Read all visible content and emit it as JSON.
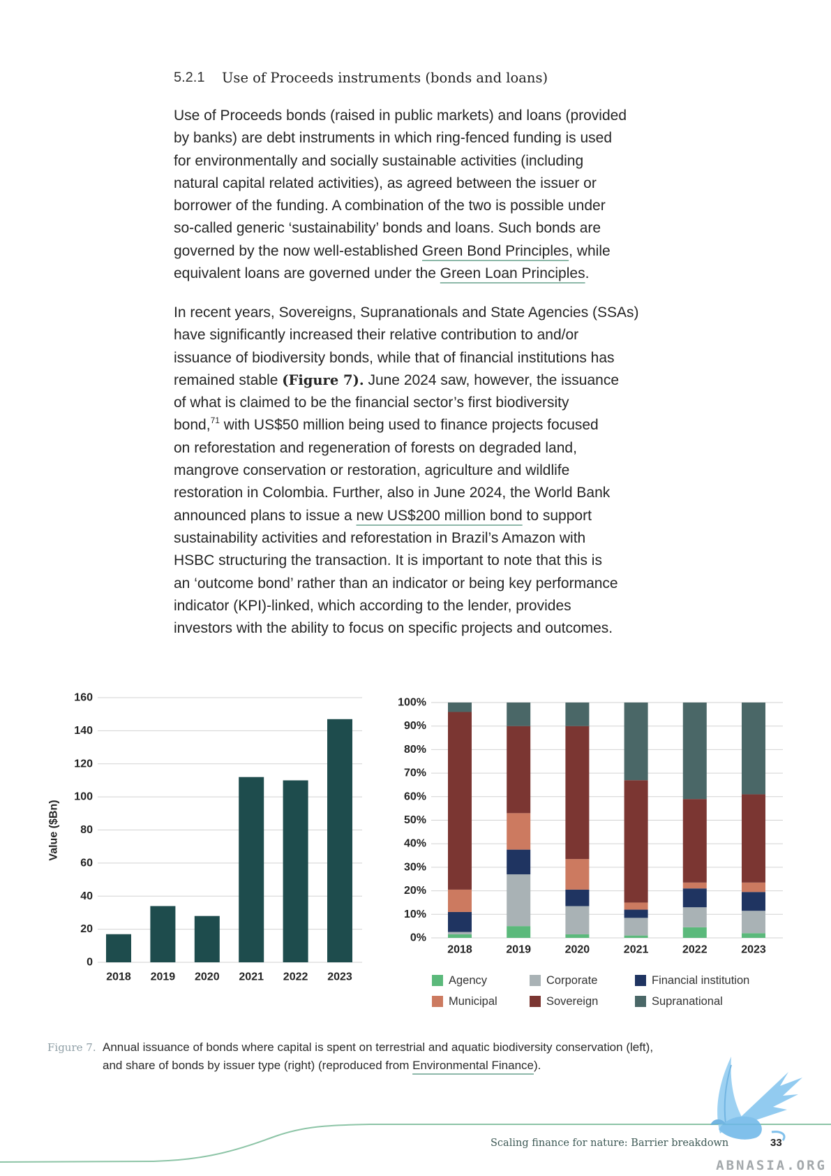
{
  "section": {
    "number": "5.2.1",
    "title": "Use of Proceeds instruments (bonds and loans)"
  },
  "paragraph_1": {
    "lines": [
      "Use of Proceeds bonds (raised in public markets) and loans (provided",
      "by banks) are debt instruments in which ring-fenced funding is used",
      "for environmentally and socially sustainable activities (including",
      "natural capital related activities), as agreed between the issuer or",
      "borrower of the funding. A combination of the two is possible under",
      "so-called generic ‘sustainability’ bonds and loans. Such bonds are",
      {
        "before": "governed by the now well-established ",
        "link": "Green Bond Principles",
        "after": ", while"
      },
      {
        "before": "equivalent loans are governed under the ",
        "link": "Green Loan Principles",
        "after": "."
      }
    ]
  },
  "paragraph_2": {
    "lines": [
      "In recent years, Sovereigns, Supranationals and State Agencies (SSAs)",
      "have significantly increased their relative contribution to and/or",
      "issuance of biodiversity bonds, while that of financial institutions has",
      {
        "before": "remained stable ",
        "bold": "(Figure 7).",
        "after": " June 2024 saw, however, the issuance"
      },
      "of what is claimed to be the financial sector’s first biodiversity",
      {
        "before": "bond,",
        "sup": "71",
        "after": " with US$50 million being used to finance projects focused"
      },
      "on reforestation and regeneration of forests on degraded land,",
      "mangrove conservation or restoration, agriculture and wildlife",
      "restoration in Colombia. Further, also in June 2024, the World Bank",
      {
        "before": "announced plans to issue a ",
        "link": "new US$200 million bond",
        "after": " to support"
      },
      "sustainability activities and reforestation in Brazil’s Amazon with",
      "HSBC structuring the transaction. It is important to note that this is",
      "an ‘outcome bond’ rather than an indicator or being key performance",
      "indicator (KPI)-linked, which according to the lender, provides",
      "investors with the ability to focus on specific projects and outcomes."
    ]
  },
  "chart_data": [
    {
      "type": "bar",
      "categories": [
        "2018",
        "2019",
        "2020",
        "2021",
        "2022",
        "2023"
      ],
      "values": [
        17,
        34,
        28,
        112,
        110,
        147
      ],
      "ylabel": "Value ($Bn)",
      "ylim": [
        0,
        160
      ],
      "yticks": [
        0,
        20,
        40,
        60,
        80,
        100,
        120,
        140,
        160
      ],
      "grid": true,
      "color": "#1e4c4d"
    },
    {
      "type": "bar",
      "stacked": true,
      "normalized_percent": true,
      "categories": [
        "2018",
        "2019",
        "2020",
        "2021",
        "2022",
        "2023"
      ],
      "series": [
        {
          "name": "Agency",
          "color": "#5bb97b",
          "values": [
            1.5,
            5,
            1.5,
            1,
            4.5,
            2
          ]
        },
        {
          "name": "Corporate",
          "color": "#a9b2b5",
          "values": [
            1,
            22,
            12,
            7.5,
            8.5,
            9.5
          ]
        },
        {
          "name": "Financial institution",
          "color": "#1f3461",
          "values": [
            8.5,
            10.5,
            7,
            3.5,
            8,
            8
          ]
        },
        {
          "name": "Municipal",
          "color": "#cc7a60",
          "values": [
            9.5,
            15.5,
            13,
            3,
            2.5,
            4
          ]
        },
        {
          "name": "Sovereign",
          "color": "#7b3632",
          "values": [
            75.5,
            37,
            56.5,
            52,
            35.5,
            37.5
          ]
        },
        {
          "name": "Supranational",
          "color": "#4a6767",
          "values": [
            4,
            10,
            10,
            33,
            41,
            39
          ]
        }
      ],
      "ylim": [
        0,
        100
      ],
      "yticks": [
        0,
        10,
        20,
        30,
        40,
        50,
        60,
        70,
        80,
        90,
        100
      ],
      "ytick_labels": [
        "0%",
        "10%",
        "20%",
        "30%",
        "40%",
        "50%",
        "60%",
        "70%",
        "80%",
        "90%",
        "100%"
      ],
      "grid": true,
      "legend": "bottom"
    }
  ],
  "caption": {
    "label": "Figure 7.",
    "line1": "Annual issuance of bonds where capital is spent on terrestrial and aquatic biodiversity conservation (left),",
    "line2_before": "and share of bonds by issuer type (right) (reproduced from ",
    "line2_link": "Environmental Finance",
    "line2_after": ")."
  },
  "footer": {
    "running_title": "Scaling finance for nature: Barrier breakdown",
    "page_number": "33"
  },
  "watermark": {
    "text": "ABNASIA.ORG",
    "logo_icon": "bird-logo-icon"
  },
  "colors": {
    "link_underline": "#8db8a9",
    "footer_line": "#8cc4a6",
    "caption_label": "#8e9ea5",
    "running_title": "#3b5753"
  }
}
